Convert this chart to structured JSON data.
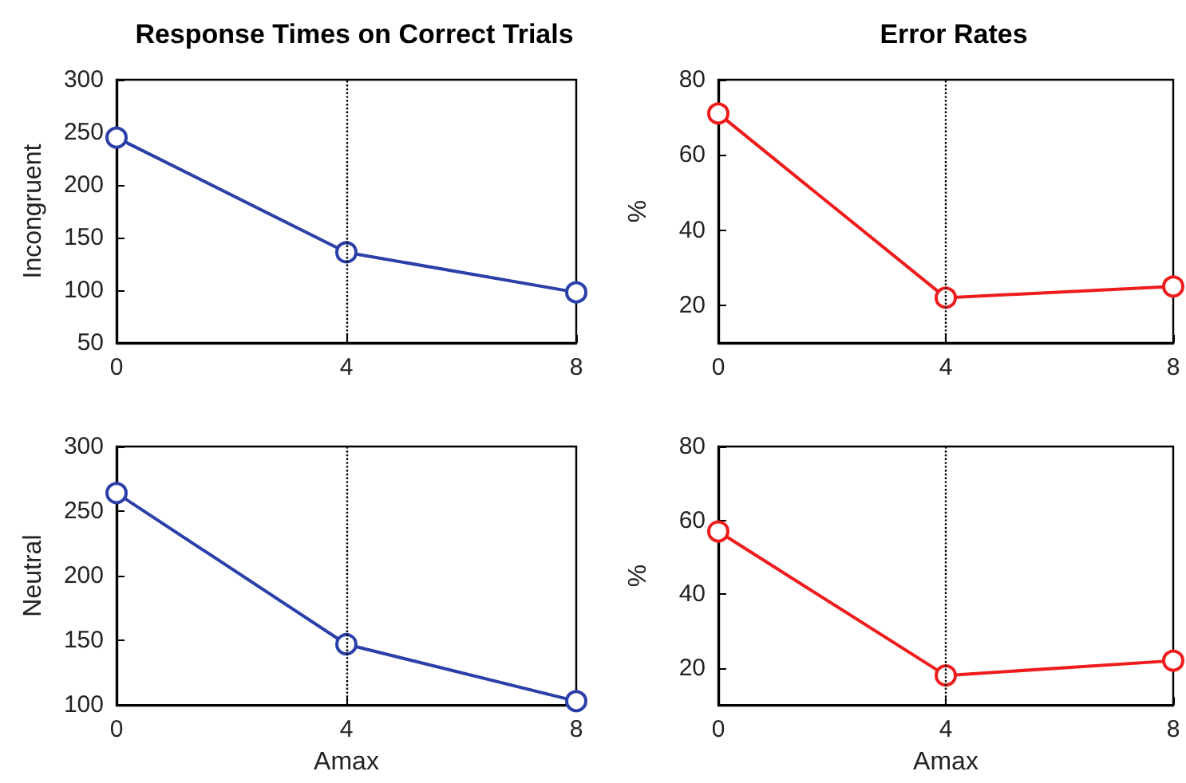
{
  "chart_data": [
    {
      "type": "line",
      "title": "Response Times on Correct Trials",
      "ylabel": "Incongruent",
      "x": [
        0,
        4,
        8
      ],
      "series": [
        {
          "color": "#2b3fa8",
          "values": [
            245,
            136,
            98
          ]
        }
      ],
      "xlim": [
        0,
        8
      ],
      "xticks": [
        0,
        4,
        8
      ],
      "ylim": [
        50,
        300
      ],
      "yticks": [
        50,
        100,
        150,
        200,
        250,
        300
      ],
      "marker": "circle",
      "grid": false,
      "ref_lines": [
        {
          "axis": "x",
          "value": 4,
          "line_style": "dotted",
          "color": "#000000"
        }
      ]
    },
    {
      "type": "line",
      "title": "Error Rates",
      "ylabel": "%",
      "x": [
        0,
        4,
        8
      ],
      "series": [
        {
          "color": "#ee1c1c",
          "values": [
            71,
            22,
            25
          ]
        }
      ],
      "xlim": [
        0,
        8
      ],
      "xticks": [
        0,
        4,
        8
      ],
      "ylim": [
        10,
        80
      ],
      "yticks": [
        20,
        40,
        60,
        80
      ],
      "marker": "circle",
      "grid": false,
      "ref_lines": [
        {
          "axis": "x",
          "value": 4,
          "line_style": "dotted",
          "color": "#000000"
        }
      ]
    },
    {
      "type": "line",
      "xlabel": "Amax",
      "ylabel": "Neutral",
      "x": [
        0,
        4,
        8
      ],
      "series": [
        {
          "color": "#2b3fa8",
          "values": [
            264,
            147,
            103
          ]
        }
      ],
      "xlim": [
        0,
        8
      ],
      "xticks": [
        0,
        4,
        8
      ],
      "ylim": [
        100,
        300
      ],
      "yticks": [
        100,
        150,
        200,
        250,
        300
      ],
      "marker": "circle",
      "grid": false,
      "ref_lines": [
        {
          "axis": "x",
          "value": 4,
          "line_style": "dotted",
          "color": "#000000"
        }
      ]
    },
    {
      "type": "line",
      "xlabel": "Amax",
      "ylabel": "%",
      "x": [
        0,
        4,
        8
      ],
      "series": [
        {
          "color": "#ee1c1c",
          "values": [
            57,
            18,
            22
          ]
        }
      ],
      "xlim": [
        0,
        8
      ],
      "xticks": [
        0,
        4,
        8
      ],
      "ylim": [
        10,
        80
      ],
      "yticks": [
        20,
        40,
        60,
        80
      ],
      "marker": "circle",
      "grid": false,
      "ref_lines": [
        {
          "axis": "x",
          "value": 4,
          "line_style": "dotted",
          "color": "#000000"
        }
      ]
    }
  ]
}
